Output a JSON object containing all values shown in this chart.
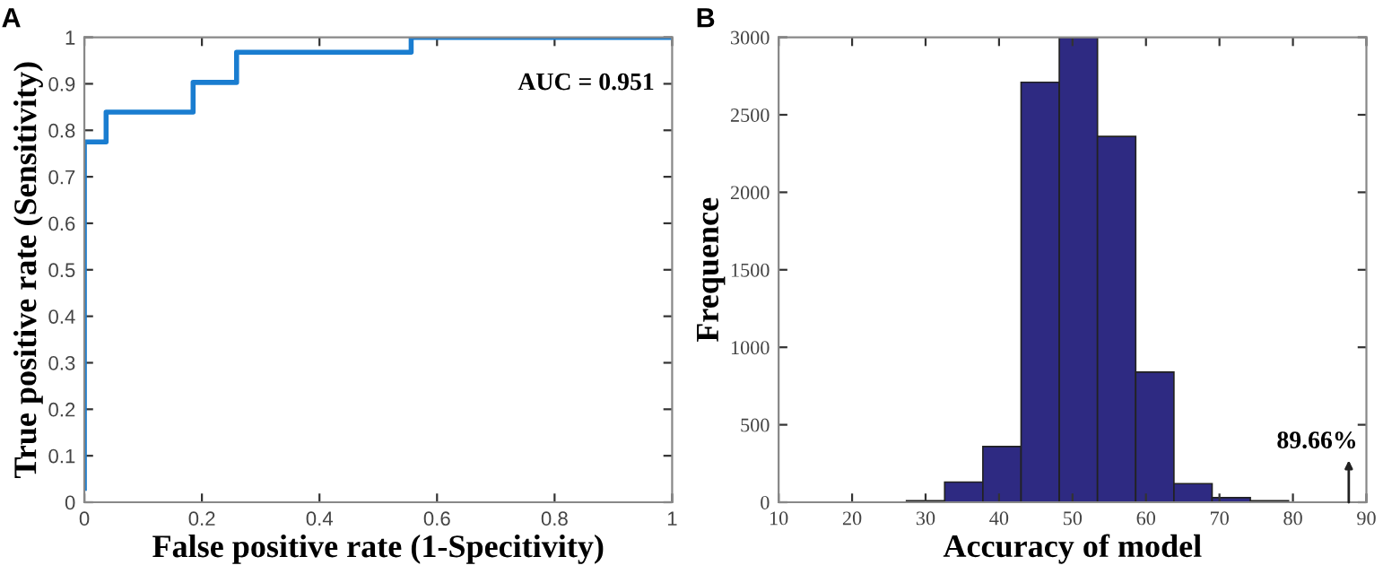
{
  "chart_data": [
    {
      "type": "line",
      "title": "A",
      "xlabel": "False positive rate (1-Specitivity)",
      "ylabel": "True positive rate (Sensitivity)",
      "x": [
        0,
        0,
        0.037,
        0.037,
        0.185,
        0.185,
        0.259,
        0.259,
        0.556,
        0.556,
        1
      ],
      "series": [
        {
          "color": "#1a7dd0",
          "values": [
            0.03,
            0.775,
            0.775,
            0.839,
            0.839,
            0.903,
            0.903,
            0.968,
            0.968,
            1,
            1
          ]
        }
      ],
      "xlim": [
        0,
        1
      ],
      "ylim": [
        0,
        1
      ],
      "xticks": [
        0,
        0.2,
        0.4,
        0.6,
        0.8,
        1
      ],
      "yticks": [
        0,
        0.1,
        0.2,
        0.3,
        0.4,
        0.5,
        0.6,
        0.7,
        0.8,
        0.9,
        1
      ],
      "annotations": [
        "AUC = 0.951"
      ],
      "grid": false,
      "legend": false
    },
    {
      "type": "histogram",
      "title": "B",
      "xlabel": "Accuracy of model",
      "ylabel": "Frequence",
      "bins": [
        27.4,
        32.6,
        37.8,
        43.0,
        48.2,
        53.4,
        58.6,
        63.8,
        69.0,
        74.2,
        79.4
      ],
      "values": [
        10,
        130,
        360,
        2710,
        3000,
        2360,
        840,
        120,
        30,
        10
      ],
      "color": "#2e2a82",
      "xlim": [
        10,
        90
      ],
      "ylim": [
        0,
        3000
      ],
      "xticks": [
        10,
        20,
        30,
        40,
        50,
        60,
        70,
        80,
        90
      ],
      "yticks": [
        0,
        500,
        1000,
        1500,
        2000,
        2500,
        3000
      ],
      "annotations": [
        "89.66%"
      ],
      "grid": false,
      "legend": false
    }
  ]
}
